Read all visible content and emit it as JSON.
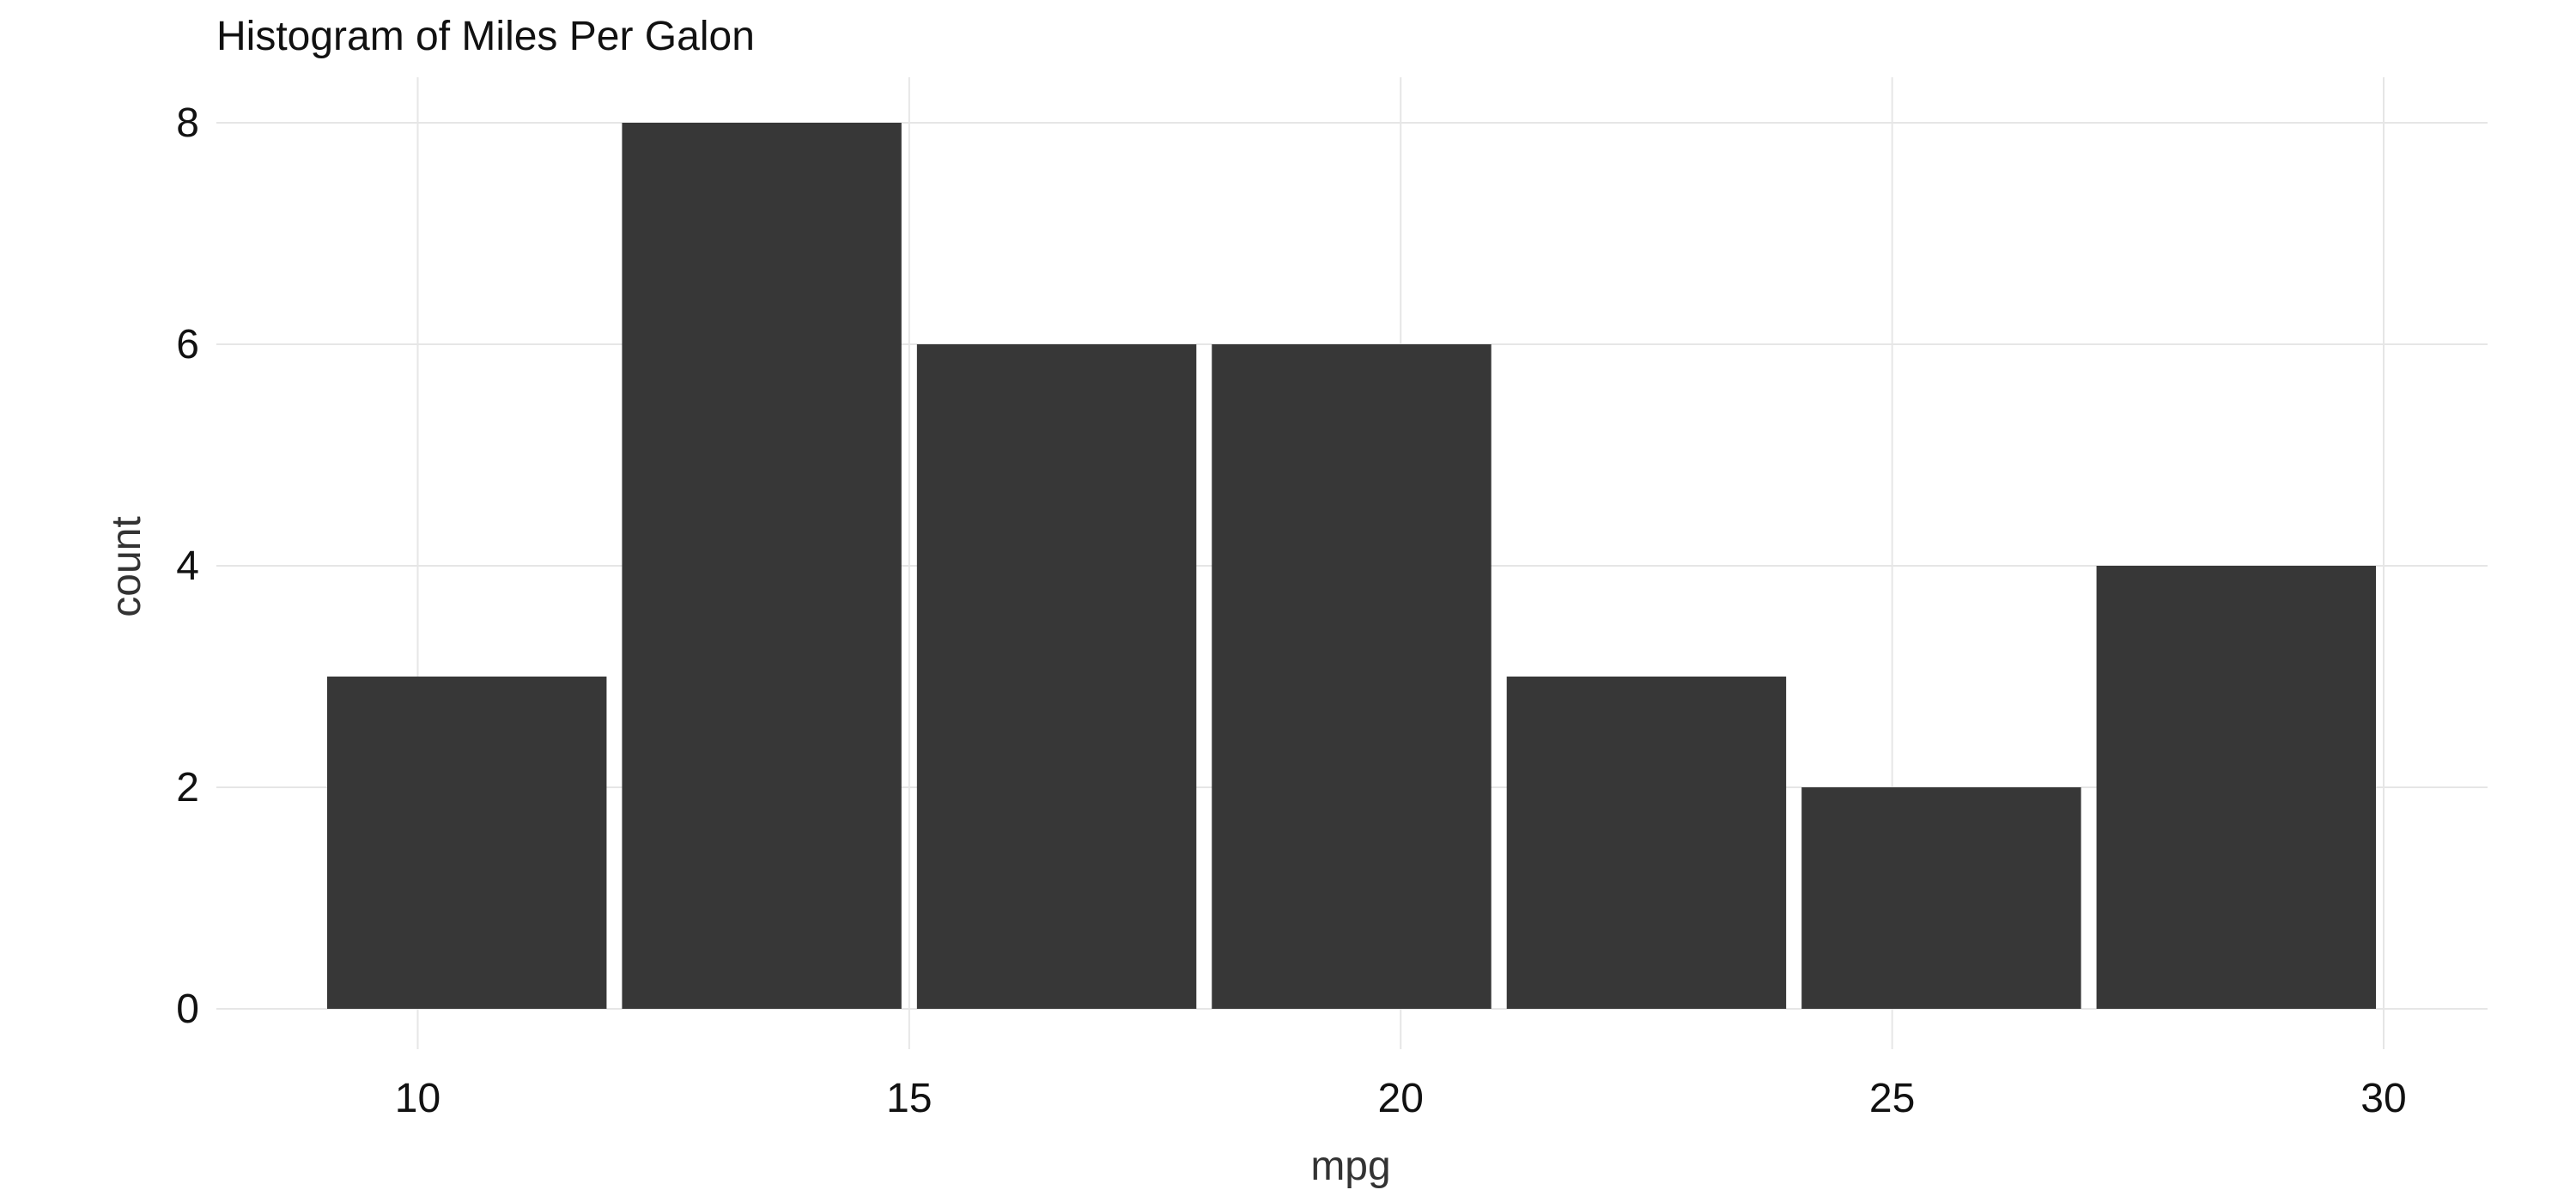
{
  "chart_data": {
    "type": "bar",
    "title": "Histogram of Miles Per Galon",
    "xlabel": "mpg",
    "ylabel": "count",
    "xlim": [
      8,
      31
    ],
    "ylim": [
      0,
      8
    ],
    "xticks": [
      10,
      15,
      20,
      25,
      30
    ],
    "yticks": [
      0,
      2,
      4,
      6,
      8
    ],
    "grid": true,
    "bins": [
      {
        "start": 9.0,
        "end": 12.0,
        "count": 3
      },
      {
        "start": 12.0,
        "end": 15.0,
        "count": 8
      },
      {
        "start": 15.0,
        "end": 18.0,
        "count": 6
      },
      {
        "start": 18.0,
        "end": 21.0,
        "count": 6
      },
      {
        "start": 21.0,
        "end": 24.0,
        "count": 3
      },
      {
        "start": 24.0,
        "end": 27.0,
        "count": 2
      },
      {
        "start": 27.0,
        "end": 30.0,
        "count": 4
      }
    ],
    "bar_color": "#373737",
    "grid_color": "#e6e6e6"
  }
}
